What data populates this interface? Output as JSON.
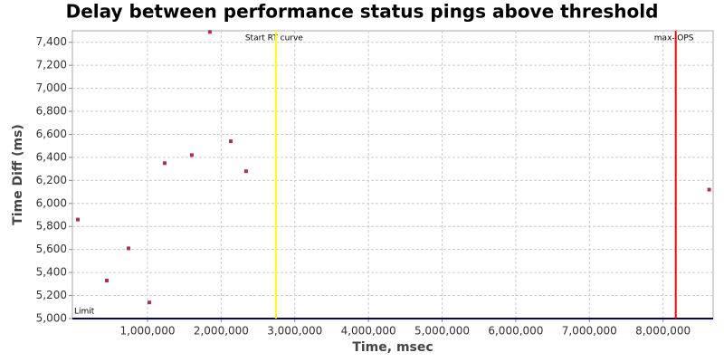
{
  "chart_data": {
    "type": "scatter",
    "title": "Delay between performance status pings above threshold",
    "x_label": "Time, msec",
    "y_label": "Time Diff (ms)",
    "xlim": [
      -20000,
      8680000
    ],
    "ylim": [
      5000,
      7500
    ],
    "xticks": [
      {
        "value": 1000000,
        "label": "1,000,000"
      },
      {
        "value": 2000000,
        "label": "2,000,000"
      },
      {
        "value": 3000000,
        "label": "3,000,000"
      },
      {
        "value": 4000000,
        "label": "4,000,000"
      },
      {
        "value": 5000000,
        "label": "5,000,000"
      },
      {
        "value": 6000000,
        "label": "6,000,000"
      },
      {
        "value": 7000000,
        "label": "7,000,000"
      },
      {
        "value": 8000000,
        "label": "8,000,000"
      }
    ],
    "yticks": [
      {
        "value": 5000,
        "label": "5,000"
      },
      {
        "value": 5200,
        "label": "5,200"
      },
      {
        "value": 5400,
        "label": "5,400"
      },
      {
        "value": 5600,
        "label": "5,600"
      },
      {
        "value": 5800,
        "label": "5,800"
      },
      {
        "value": 6000,
        "label": "6,000"
      },
      {
        "value": 6200,
        "label": "6,200"
      },
      {
        "value": 6400,
        "label": "6,400"
      },
      {
        "value": 6600,
        "label": "6,600"
      },
      {
        "value": 6800,
        "label": "6,800"
      },
      {
        "value": 7000,
        "label": "7,000"
      },
      {
        "value": 7200,
        "label": "7,200"
      },
      {
        "value": 7400,
        "label": "7,400"
      }
    ],
    "grid": true,
    "color": "#b03050",
    "x": [
      54000,
      447000,
      742000,
      1024000,
      1233000,
      1601000,
      1847000,
      2130000,
      2338000,
      8626000
    ],
    "values": [
      5860,
      5330,
      5610,
      5140,
      6350,
      6420,
      7490,
      6540,
      6280,
      6120
    ],
    "vlines": [
      {
        "label": "Start RT curve",
        "x": 2743000,
        "color": "#ffff00"
      },
      {
        "label": "max-IOPS",
        "x": 8172000,
        "color": "#ff0000"
      }
    ],
    "hlines": [
      {
        "label": "Limit",
        "y": 5000,
        "color": "#000080"
      }
    ]
  }
}
